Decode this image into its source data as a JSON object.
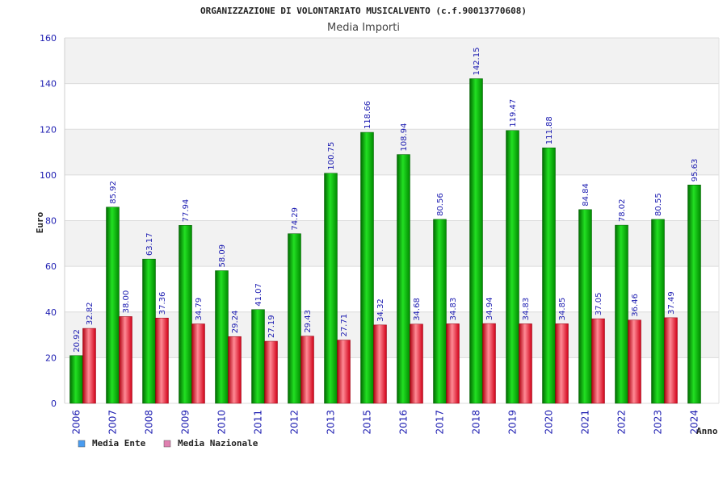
{
  "chart_data": {
    "type": "bar",
    "title": "ORGANIZZAZIONE DI VOLONTARIATO MUSICALVENTO (c.f.90013770608)",
    "subtitle": "Media Importi",
    "ylabel": "Euro",
    "xlabel": "Anno",
    "ylim": [
      0,
      160
    ],
    "yticks": [
      0,
      20,
      40,
      60,
      80,
      100,
      120,
      140,
      160
    ],
    "categories": [
      "2006",
      "2007",
      "2008",
      "2009",
      "2010",
      "2011",
      "2012",
      "2013",
      "2015",
      "2016",
      "2017",
      "2018",
      "2019",
      "2020",
      "2021",
      "2022",
      "2023",
      "2024"
    ],
    "series": [
      {
        "name": "Media Ente",
        "color": "#00c000",
        "legend_color": "#4a9cf0",
        "values": [
          20.92,
          85.92,
          63.17,
          77.94,
          58.09,
          41.07,
          74.29,
          100.75,
          118.66,
          108.94,
          80.56,
          142.15,
          119.47,
          111.88,
          84.84,
          78.02,
          80.55,
          95.63
        ],
        "labels": [
          "20.92",
          "85.92",
          "63.17",
          "77.94",
          "58.09",
          "41.07",
          "74.29",
          "100.75",
          "118.66",
          "108.94",
          "80.56",
          "142.15",
          "119.47",
          "111.88",
          "84.84",
          "78.02",
          "80.55",
          "95.63"
        ]
      },
      {
        "name": "Media Nazionale",
        "color": "#e01020",
        "legend_color": "#e080b0",
        "values": [
          32.82,
          38.0,
          37.36,
          34.79,
          29.24,
          27.19,
          29.43,
          27.71,
          34.32,
          34.68,
          34.83,
          34.94,
          34.83,
          34.85,
          37.05,
          36.46,
          37.49,
          null
        ],
        "labels": [
          "32.82",
          "38.00",
          "37.36",
          "34.79",
          "29.24",
          "27.19",
          "29.43",
          "27.71",
          "34.32",
          "34.68",
          "34.83",
          "34.94",
          "34.83",
          "34.85",
          "37.05",
          "36.46",
          "37.49",
          null
        ]
      }
    ],
    "grid": true,
    "legend_position": "bottom-left"
  }
}
